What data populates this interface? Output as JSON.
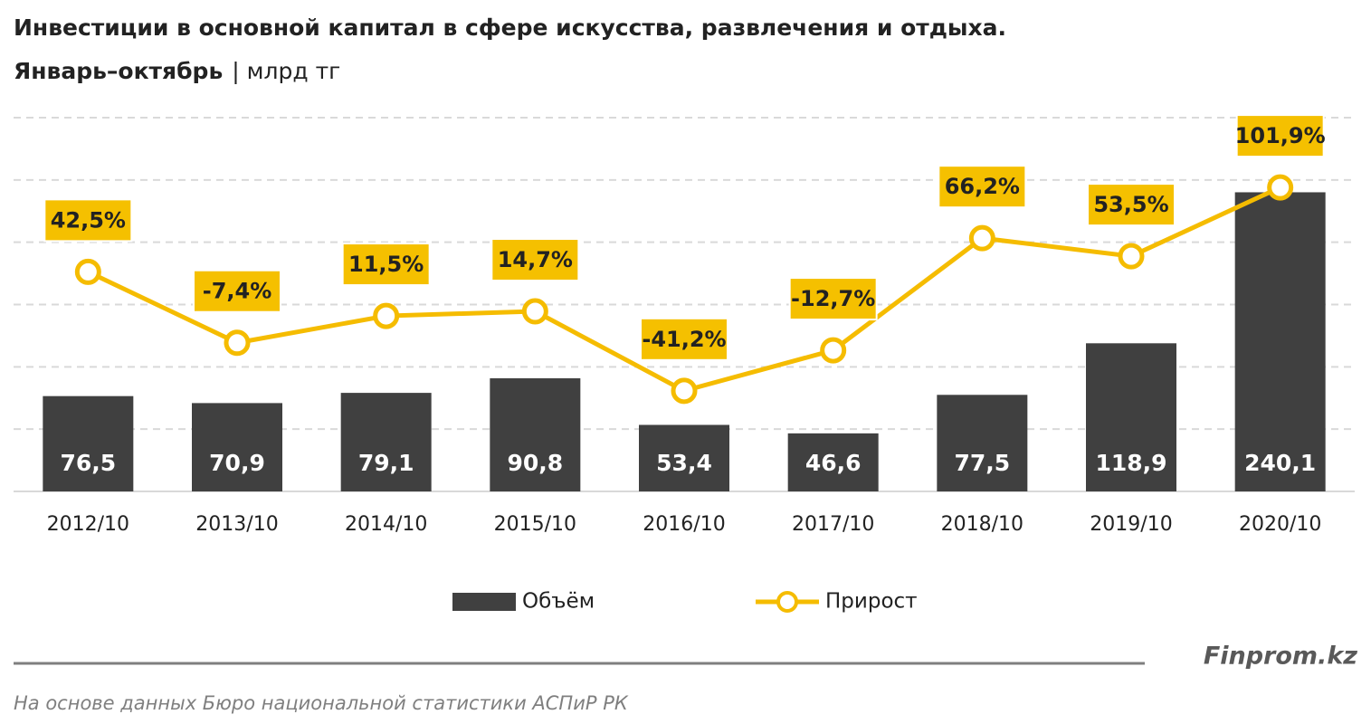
{
  "chart_data": {
    "type": "combo",
    "title": "Инвестиции в основной капитал в сфере искусства, развлечения и отдыха.",
    "subtitle": "Январь–октябрь",
    "unit": "| млрд тг",
    "categories": [
      "2012/10",
      "2013/10",
      "2014/10",
      "2015/10",
      "2016/10",
      "2017/10",
      "2018/10",
      "2019/10",
      "2020/10"
    ],
    "series": [
      {
        "name": "Объём",
        "type": "bar",
        "color": "#404040",
        "values": [
          76.5,
          70.9,
          79.1,
          90.8,
          53.4,
          46.6,
          77.5,
          118.9,
          240.1
        ],
        "value_labels": [
          "76,5",
          "70,9",
          "79,1",
          "90,8",
          "53,4",
          "46,6",
          "77,5",
          "118,9",
          "240,1"
        ]
      },
      {
        "name": "Прирост",
        "type": "line",
        "axis": "y2",
        "color": "#f5bc00",
        "values": [
          42.5,
          -7.4,
          11.5,
          14.7,
          -41.2,
          -12.7,
          66.2,
          53.5,
          101.9
        ],
        "value_labels": [
          "42,5%",
          "-7,4%",
          "11,5%",
          "14,7%",
          "-41,2%",
          "-12,7%",
          "66,2%",
          "53,5%",
          "101,9%"
        ]
      }
    ],
    "ylim": [
      0,
      300
    ],
    "y2lim": [
      -112,
      151
    ],
    "grid": true,
    "brand": "Finprom.kz",
    "source": "На основе данных  Бюро национальной  статистики АСПиР РК"
  }
}
